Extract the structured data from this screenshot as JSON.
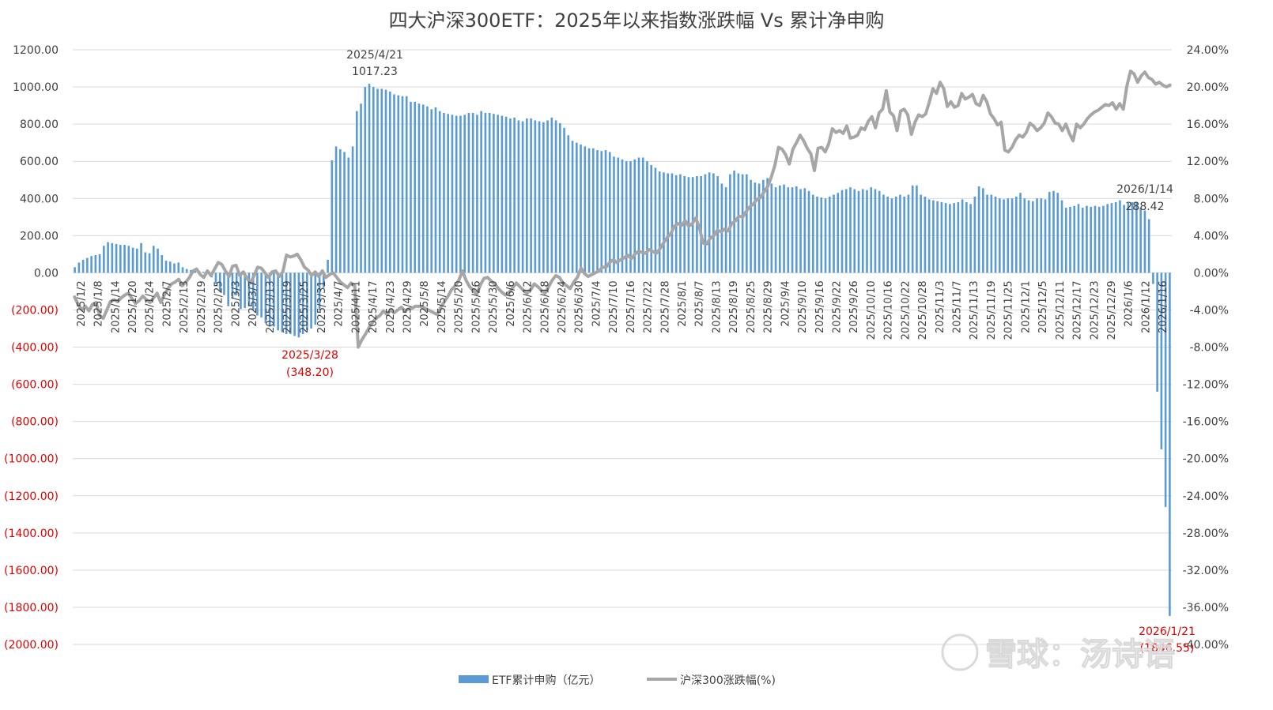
{
  "chart_data": {
    "type": "bar+line",
    "title": "四大沪深300ETF：2025年以来指数涨跌幅 Vs 累计净申购",
    "left_axis": {
      "ylim": [
        -2000,
        1200
      ],
      "ticks": [
        "1200.00",
        "1000.00",
        "800.00",
        "600.00",
        "400.00",
        "200.00",
        "0.00",
        "(200.00)",
        "(400.00)",
        "(600.00)",
        "(800.00)",
        "(1000.00)",
        "(1200.00)",
        "(1400.00)",
        "(1600.00)",
        "(1800.00)",
        "(2000.00)"
      ]
    },
    "right_axis": {
      "ylim": [
        -40,
        24
      ],
      "ticks": [
        "24.00%",
        "20.00%",
        "16.00%",
        "12.00%",
        "8.00%",
        "4.00%",
        "0.00%",
        "-4.00%",
        "-8.00%",
        "-12.00%",
        "-16.00%",
        "-20.00%",
        "-24.00%",
        "-28.00%",
        "-32.00%",
        "-36.00%",
        "-40.00%"
      ]
    },
    "x_tick_labels": [
      "2025/1/2",
      "2025/1/8",
      "2025/1/14",
      "2025/1/20",
      "2025/1/24",
      "2025/2/7",
      "2025/2/13",
      "2025/2/19",
      "2025/2/25",
      "2025/3/3",
      "2025/3/7",
      "2025/3/13",
      "2025/3/19",
      "2025/3/25",
      "2025/3/31",
      "2025/4/7",
      "2025/4/11",
      "2025/4/17",
      "2025/4/23",
      "2025/4/29",
      "2025/5/8",
      "2025/5/14",
      "2025/5/20",
      "2025/5/26",
      "2025/5/30",
      "2025/6/6",
      "2025/6/12",
      "2025/6/18",
      "2025/6/24",
      "2025/6/30",
      "2025/7/4",
      "2025/7/10",
      "2025/7/16",
      "2025/7/22",
      "2025/7/28",
      "2025/8/1",
      "2025/8/7",
      "2025/8/13",
      "2025/8/19",
      "2025/8/25",
      "2025/8/29",
      "2025/9/4",
      "2025/9/10",
      "2025/9/16",
      "2025/9/22",
      "2025/9/26",
      "2025/10/10",
      "2025/10/16",
      "2025/10/22",
      "2025/10/28",
      "2025/11/3",
      "2025/11/7",
      "2025/11/13",
      "2025/11/19",
      "2025/11/25",
      "2025/12/1",
      "2025/12/5",
      "2025/12/11",
      "2025/12/17",
      "2025/12/23",
      "2025/12/29",
      "2026/1/6",
      "2026/1/12",
      "2026/1/16"
    ],
    "bar_series": {
      "name": "ETF累计申购（亿元）",
      "color": "#5b9bd5",
      "values": [
        30,
        55,
        70,
        80,
        90,
        95,
        100,
        145,
        165,
        160,
        155,
        150,
        150,
        145,
        135,
        130,
        160,
        110,
        105,
        145,
        130,
        95,
        65,
        60,
        50,
        55,
        30,
        20,
        15,
        10,
        10,
        5,
        0,
        -25,
        -60,
        -100,
        -120,
        -180,
        -140,
        -120,
        -195,
        -190,
        -180,
        -200,
        -230,
        -240,
        -270,
        -290,
        -290,
        -310,
        -320,
        -330,
        -330,
        -340,
        -348,
        -330,
        -310,
        -300,
        -280,
        -200,
        -80,
        70,
        605,
        680,
        665,
        650,
        620,
        680,
        870,
        910,
        1000,
        1017,
        1000,
        990,
        990,
        985,
        975,
        960,
        955,
        950,
        950,
        920,
        920,
        910,
        905,
        895,
        880,
        890,
        870,
        860,
        855,
        850,
        845,
        845,
        850,
        860,
        860,
        850,
        870,
        860,
        860,
        855,
        850,
        845,
        840,
        830,
        835,
        820,
        815,
        830,
        830,
        820,
        815,
        810,
        820,
        835,
        820,
        805,
        780,
        740,
        710,
        700,
        690,
        680,
        670,
        670,
        660,
        655,
        660,
        650,
        625,
        620,
        610,
        600,
        600,
        610,
        620,
        620,
        600,
        580,
        565,
        545,
        540,
        535,
        535,
        525,
        530,
        520,
        515,
        515,
        520,
        520,
        530,
        540,
        535,
        520,
        480,
        460,
        530,
        550,
        535,
        530,
        530,
        500,
        485,
        480,
        500,
        510,
        480,
        460,
        470,
        475,
        460,
        460,
        465,
        450,
        455,
        440,
        420,
        410,
        405,
        400,
        410,
        420,
        430,
        445,
        450,
        460,
        450,
        440,
        450,
        445,
        460,
        450,
        440,
        420,
        410,
        400,
        410,
        420,
        410,
        420,
        470,
        470,
        420,
        410,
        395,
        390,
        385,
        380,
        375,
        370,
        375,
        380,
        395,
        380,
        370,
        410,
        465,
        455,
        420,
        420,
        410,
        400,
        395,
        400,
        400,
        410,
        430,
        400,
        390,
        385,
        400,
        400,
        395,
        435,
        440,
        430,
        390,
        350,
        355,
        360,
        370,
        350,
        360,
        355,
        360,
        355,
        360,
        370,
        375,
        380,
        390,
        365,
        375,
        380,
        380,
        350,
        335,
        288,
        -60,
        -640,
        -950,
        -1260,
        -1846.55
      ]
    },
    "line_series": {
      "name": "沪深300涨跌幅(%)",
      "color": "#a6a6a6",
      "values": [
        -2.6,
        -3.4,
        -4.0,
        -3.6,
        -4.1,
        -3.4,
        -3.2,
        -4.6,
        -4.9,
        -4.0,
        -3.1,
        -2.9,
        -3.1,
        -2.7,
        -2.4,
        -2.2,
        -2.8,
        -3.3,
        -3.0,
        -2.5,
        -2.9,
        -3.2,
        -2.7,
        -2.2,
        -3.2,
        -2.4,
        -1.7,
        -1.2,
        -1.0,
        -0.7,
        -1.4,
        -1.0,
        -0.5,
        0.2,
        0.4,
        -0.2,
        -0.5,
        0.2,
        -0.3,
        0.4,
        1.1,
        0.9,
        0.2,
        -0.4,
        0.7,
        0.8,
        -0.3,
        0.1,
        -0.6,
        -1.1,
        -0.3,
        0.6,
        0.5,
        0.0,
        -0.5,
        0.1,
        0.2,
        -0.4,
        0.1,
        1.9,
        1.7,
        1.8,
        2.0,
        1.4,
        0.6,
        0.3,
        -0.3,
        0.1,
        -0.4,
        0.2,
        -0.5,
        -0.2,
        0.0,
        -0.5,
        -1.0,
        -1.3,
        -1.6,
        -1.1,
        -1.4,
        -8.0,
        -7.2,
        -6.6,
        -5.9,
        -5.3,
        -4.9,
        -4.6,
        -4.1,
        -4.5,
        -4.0,
        -4.3,
        -4.0,
        -3.7,
        -4.1,
        -3.9,
        -3.8,
        -3.6,
        -3.6,
        -3.7,
        -3.9,
        -4.1,
        -4.3,
        -4.5,
        -3.7,
        -3.1,
        -2.5,
        -1.8,
        -1.4,
        -0.8,
        0.2,
        -0.8,
        -1.5,
        -1.9,
        -2.3,
        -1.3,
        -0.6,
        -0.5,
        -0.9,
        -1.2,
        -1.7,
        -2.1,
        -2.4,
        -2.1,
        -1.6,
        -1.1,
        -1.5,
        -1.9,
        -2.2,
        -1.8,
        -1.2,
        -1.5,
        -1.9,
        -2.2,
        -1.5,
        -0.8,
        -0.3,
        -0.5,
        -1.1,
        -1.4,
        -1.7,
        -1.0,
        -0.5,
        0.5,
        -0.1,
        -0.4,
        -0.2,
        0.0,
        0.2,
        0.6,
        0.6,
        1.1,
        1.4,
        1.1,
        1.4,
        1.6,
        1.9,
        1.5,
        2.0,
        2.3,
        2.2,
        2.1,
        2.5,
        2.3,
        2.1,
        2.6,
        3.2,
        3.8,
        4.2,
        5.0,
        5.3,
        5.1,
        5.6,
        5.0,
        5.3,
        5.9,
        4.8,
        3.2,
        3.1,
        3.7,
        4.0,
        4.6,
        4.4,
        4.7,
        4.5,
        5.3,
        5.6,
        6.1,
        6.0,
        6.6,
        7.1,
        7.4,
        7.9,
        8.1,
        8.7,
        9.3,
        10.3,
        11.6,
        13.5,
        13.3,
        12.7,
        11.7,
        13.3,
        14.0,
        14.8,
        14.2,
        13.4,
        12.8,
        11.0,
        13.4,
        13.5,
        13.0,
        13.9,
        15.5,
        15.1,
        15.3,
        15.0,
        15.8,
        14.5,
        14.6,
        14.8,
        15.6,
        15.4,
        16.3,
        16.8,
        15.6,
        17.2,
        17.6,
        19.6,
        17.3,
        16.9,
        15.3,
        17.4,
        17.6,
        17.0,
        14.9,
        16.2,
        17.0,
        16.8,
        17.1,
        18.4,
        19.8,
        19.3,
        20.5,
        19.8,
        17.9,
        18.4,
        17.8,
        18.0,
        19.3,
        18.7,
        18.9,
        19.2,
        18.2,
        18.0,
        19.1,
        18.4,
        17.1,
        16.6,
        15.9,
        16.2,
        13.2,
        13.0,
        13.5,
        14.3,
        14.8,
        14.6,
        15.1,
        16.1,
        15.8,
        15.3,
        15.6,
        16.1,
        17.2,
        16.8,
        16.1,
        16.0,
        15.3,
        16.0,
        15.0,
        14.2,
        16.0,
        15.6,
        16.0,
        16.6,
        17.0,
        17.3,
        17.5,
        17.8,
        18.1,
        18.0,
        18.3,
        17.6,
        18.2,
        17.6,
        20.1,
        21.7,
        21.4,
        20.5,
        21.2,
        21.6,
        21.0,
        20.8,
        20.3,
        20.5,
        20.2,
        20.0,
        20.2
      ]
    },
    "annotations": [
      {
        "date": "2025/4/21",
        "value": "1017.23",
        "series": "bar"
      },
      {
        "date": "2025/3/28",
        "value": "(348.20)",
        "series": "bar"
      },
      {
        "date": "2026/1/14",
        "value": "288.42",
        "series": "bar"
      },
      {
        "date": "2026/1/21",
        "value": "(1846.55)",
        "series": "bar"
      }
    ],
    "legend": "bottom",
    "grid": true
  },
  "watermark": "雪球：汤诗语"
}
